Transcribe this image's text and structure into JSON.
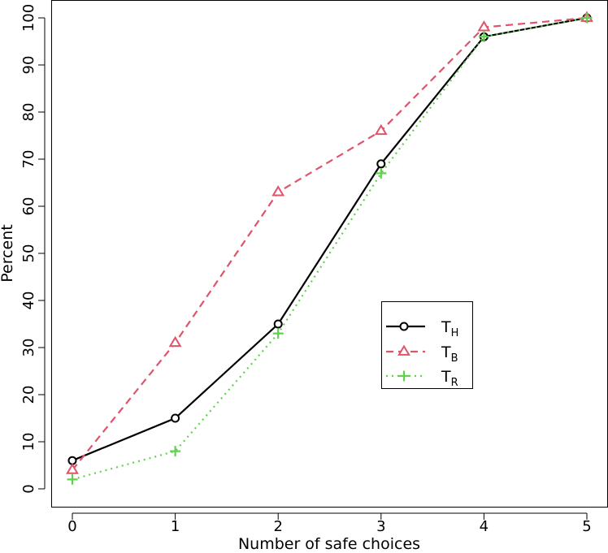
{
  "chart_data": {
    "type": "line",
    "title": "",
    "xlabel": "Number of safe choices",
    "ylabel": "Percent",
    "x": [
      0,
      1,
      2,
      3,
      4,
      5
    ],
    "xlim": [
      0,
      5
    ],
    "ylim": [
      0,
      100
    ],
    "xticks": [
      "0",
      "1",
      "2",
      "3",
      "4",
      "5"
    ],
    "yticks": [
      "0",
      "10",
      "20",
      "30",
      "40",
      "50",
      "60",
      "70",
      "80",
      "90",
      "100"
    ],
    "grid": false,
    "legend_position": "right",
    "series": [
      {
        "key": "th",
        "name_main": "T",
        "name_sub": "H",
        "color": "#000000",
        "marker": "circle",
        "dash": "solid",
        "values": [
          6,
          15,
          35,
          69,
          96,
          100
        ]
      },
      {
        "key": "tb",
        "name_main": "T",
        "name_sub": "B",
        "color": "#DF536B",
        "marker": "triangle",
        "dash": "dashed",
        "values": [
          4,
          31,
          63,
          76,
          98,
          100
        ]
      },
      {
        "key": "tr",
        "name_main": "T",
        "name_sub": "R",
        "color": "#61D04F",
        "marker": "plus",
        "dash": "dotted",
        "values": [
          2,
          8,
          33,
          67,
          96,
          100
        ]
      }
    ]
  }
}
